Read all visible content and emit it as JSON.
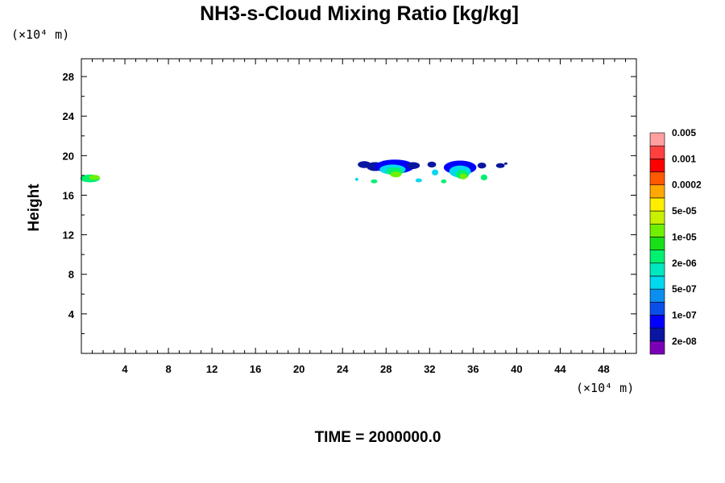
{
  "chart_data": {
    "type": "heatmap",
    "title": "NH3-s-Cloud Mixing Ratio [kg/kg]",
    "ylabel": "Height",
    "xlabel": "",
    "x_unit": "(×10⁴ m)",
    "y_unit": "(×10⁴ m)",
    "xlim": [
      0,
      51
    ],
    "ylim": [
      0,
      29.8
    ],
    "x_ticks": [
      4,
      8,
      12,
      16,
      20,
      24,
      28,
      32,
      36,
      40,
      44,
      48
    ],
    "y_ticks": [
      4,
      8,
      12,
      16,
      20,
      24,
      28
    ],
    "time_label": "TIME = 2000000.0",
    "colorbar": {
      "colors": [
        "#7a00b8",
        "#0a16a0",
        "#0000ff",
        "#0a4fe8",
        "#0a8ef0",
        "#00d8f0",
        "#00e8c0",
        "#00f070",
        "#18e018",
        "#70f000",
        "#c8f000",
        "#ffee00",
        "#ffa800",
        "#ff5a00",
        "#ff0000",
        "#ff4040",
        "#ffa0a0"
      ],
      "labels": [
        "2e-08",
        "1e-07",
        "5e-07",
        "2e-06",
        "1e-05",
        "5e-05",
        "0.0002",
        "0.001",
        "0.005"
      ]
    },
    "cloud_patches": [
      {
        "x": 0.8,
        "y": 17.7,
        "rx": 0.9,
        "ry": 0.4,
        "level": "2e-06"
      },
      {
        "x": 1.2,
        "y": 17.8,
        "rx": 0.5,
        "ry": 0.25,
        "level": "1e-05"
      },
      {
        "x": 26.0,
        "y": 19.1,
        "rx": 0.6,
        "ry": 0.35,
        "level": "2e-08"
      },
      {
        "x": 27.0,
        "y": 18.9,
        "rx": 0.8,
        "ry": 0.45,
        "level": "2e-08"
      },
      {
        "x": 28.8,
        "y": 18.9,
        "rx": 1.8,
        "ry": 0.7,
        "level": "1e-07"
      },
      {
        "x": 28.6,
        "y": 18.6,
        "rx": 1.2,
        "ry": 0.5,
        "level": "5e-07"
      },
      {
        "x": 28.8,
        "y": 18.4,
        "rx": 0.8,
        "ry": 0.4,
        "level": "2e-06"
      },
      {
        "x": 28.9,
        "y": 18.1,
        "rx": 0.5,
        "ry": 0.3,
        "level": "1e-05"
      },
      {
        "x": 30.5,
        "y": 19.0,
        "rx": 0.6,
        "ry": 0.35,
        "level": "2e-08"
      },
      {
        "x": 32.2,
        "y": 19.1,
        "rx": 0.4,
        "ry": 0.3,
        "level": "2e-08"
      },
      {
        "x": 32.5,
        "y": 18.3,
        "rx": 0.3,
        "ry": 0.3,
        "level": "5e-07"
      },
      {
        "x": 34.8,
        "y": 18.8,
        "rx": 1.5,
        "ry": 0.7,
        "level": "1e-07"
      },
      {
        "x": 34.8,
        "y": 18.4,
        "rx": 1.0,
        "ry": 0.6,
        "level": "5e-07"
      },
      {
        "x": 35.0,
        "y": 18.1,
        "rx": 0.6,
        "ry": 0.45,
        "level": "2e-06"
      },
      {
        "x": 35.1,
        "y": 17.9,
        "rx": 0.35,
        "ry": 0.3,
        "level": "1e-05"
      },
      {
        "x": 36.8,
        "y": 19.0,
        "rx": 0.4,
        "ry": 0.3,
        "level": "2e-08"
      },
      {
        "x": 37.0,
        "y": 17.8,
        "rx": 0.3,
        "ry": 0.3,
        "level": "2e-06"
      },
      {
        "x": 38.5,
        "y": 19.0,
        "rx": 0.4,
        "ry": 0.25,
        "level": "2e-08"
      },
      {
        "x": 39.0,
        "y": 19.2,
        "rx": 0.15,
        "ry": 0.12,
        "level": "2e-08"
      },
      {
        "x": 25.3,
        "y": 17.6,
        "rx": 0.15,
        "ry": 0.15,
        "level": "5e-07"
      },
      {
        "x": 26.9,
        "y": 17.4,
        "rx": 0.3,
        "ry": 0.2,
        "level": "2e-06"
      },
      {
        "x": 31.0,
        "y": 17.5,
        "rx": 0.3,
        "ry": 0.2,
        "level": "5e-07"
      },
      {
        "x": 33.3,
        "y": 17.4,
        "rx": 0.25,
        "ry": 0.2,
        "level": "2e-06"
      }
    ]
  }
}
